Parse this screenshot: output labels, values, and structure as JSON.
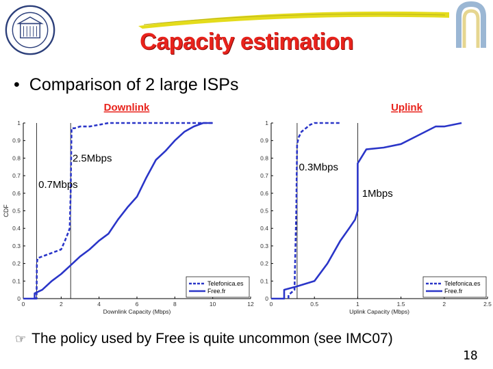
{
  "slide": {
    "title": "Capacity estimation",
    "bullet_symbol": "•",
    "bullet_text": "Comparison of 2 large ISPs",
    "footnote_icon": "pointing-hand-icon",
    "footnote_text": "The policy used by Free is quite uncommon (see IMC07)",
    "page_number": "18"
  },
  "colors": {
    "title": "#e8231c",
    "series": "#2a35c8",
    "swoosh": "#e4dc1c",
    "seal": "#2c3f7a"
  },
  "chart_data": [
    {
      "type": "line",
      "title": "Downlink",
      "xlabel": "Downlink Capacity (Mbps)",
      "ylabel": "CDF",
      "xlim": [
        0,
        12
      ],
      "ylim": [
        0,
        1
      ],
      "xticks": [
        "0",
        "2",
        "4",
        "6",
        "8",
        "10",
        "12"
      ],
      "yticks": [
        "0",
        "0.1",
        "0.2",
        "0.3",
        "0.4",
        "0.5",
        "0.6",
        "0.7",
        "0.8",
        "0.9",
        "1"
      ],
      "grid": false,
      "legend": "bottom-right",
      "vlines": [
        0.7,
        2.5
      ],
      "annotations": [
        {
          "text": "2.5Mbps",
          "x": 2.6,
          "y": 0.78
        },
        {
          "text": "0.7Mbps",
          "x": 0.8,
          "y": 0.63
        }
      ],
      "series": [
        {
          "name": "Telefonica.es",
          "style": "dashed",
          "x": [
            0.6,
            0.7,
            0.72,
            0.75,
            1.0,
            1.5,
            2.0,
            2.2,
            2.35,
            2.45,
            2.5,
            2.55,
            2.7,
            3.0,
            3.5,
            4.0,
            4.5,
            6.0,
            8.0,
            10.0
          ],
          "y": [
            0,
            0,
            0.2,
            0.23,
            0.24,
            0.26,
            0.28,
            0.33,
            0.37,
            0.4,
            0.6,
            0.97,
            0.97,
            0.98,
            0.98,
            0.99,
            1.0,
            1.0,
            1.0,
            1.0
          ]
        },
        {
          "name": "Free.fr",
          "style": "solid",
          "x": [
            0.0,
            0.6,
            0.6,
            1.0,
            1.5,
            2.0,
            2.5,
            3.0,
            3.5,
            4.0,
            4.5,
            5.0,
            5.5,
            6.0,
            6.5,
            7.0,
            7.5,
            8.0,
            8.5,
            9.0,
            9.5,
            10.0
          ],
          "y": [
            0,
            0,
            0.03,
            0.05,
            0.1,
            0.14,
            0.19,
            0.24,
            0.28,
            0.33,
            0.37,
            0.45,
            0.52,
            0.58,
            0.69,
            0.79,
            0.84,
            0.9,
            0.95,
            0.98,
            1.0,
            1.0
          ]
        }
      ]
    },
    {
      "type": "line",
      "title": "Uplink",
      "xlabel": "Uplink Capacity (Mbps)",
      "ylabel": "",
      "xlim": [
        0,
        2.5
      ],
      "ylim": [
        0,
        1
      ],
      "xticks": [
        "0",
        "0.5",
        "1",
        "1.5",
        "2",
        "2.5"
      ],
      "yticks": [
        "0",
        "0.1",
        "0.2",
        "0.3",
        "0.4",
        "0.5",
        "0.6",
        "0.7",
        "0.8",
        "0.9",
        "1"
      ],
      "grid": false,
      "legend": "bottom-right",
      "vlines": [
        0.3,
        1.0
      ],
      "annotations": [
        {
          "text": "0.3Mbps",
          "x": 0.32,
          "y": 0.73
        },
        {
          "text": "1Mbps",
          "x": 1.05,
          "y": 0.58
        }
      ],
      "series": [
        {
          "name": "Telefonica.es",
          "style": "dashed",
          "x": [
            0.2,
            0.2,
            0.27,
            0.29,
            0.3,
            0.32,
            0.35,
            0.4,
            0.45,
            0.5,
            0.6,
            0.8
          ],
          "y": [
            0,
            0.02,
            0.05,
            0.5,
            0.88,
            0.92,
            0.95,
            0.97,
            0.99,
            1.0,
            1.0,
            1.0
          ]
        },
        {
          "name": "Free.fr",
          "style": "solid",
          "x": [
            0.0,
            0.15,
            0.15,
            0.3,
            0.5,
            0.65,
            0.8,
            0.9,
            0.97,
            1.0,
            1.0,
            1.1,
            1.3,
            1.5,
            1.7,
            1.9,
            2.0,
            2.2
          ],
          "y": [
            0,
            0,
            0.05,
            0.07,
            0.1,
            0.2,
            0.33,
            0.4,
            0.45,
            0.5,
            0.77,
            0.85,
            0.86,
            0.88,
            0.93,
            0.98,
            0.98,
            1.0
          ]
        }
      ]
    }
  ]
}
